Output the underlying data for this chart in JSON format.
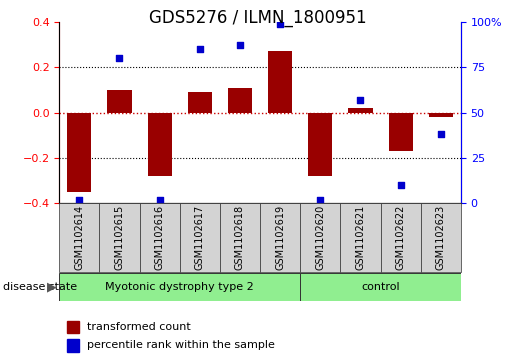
{
  "title": "GDS5276 / ILMN_1800951",
  "samples": [
    "GSM1102614",
    "GSM1102615",
    "GSM1102616",
    "GSM1102617",
    "GSM1102618",
    "GSM1102619",
    "GSM1102620",
    "GSM1102621",
    "GSM1102622",
    "GSM1102623"
  ],
  "bar_values": [
    -0.35,
    0.1,
    -0.28,
    0.09,
    0.11,
    0.27,
    -0.28,
    0.02,
    -0.17,
    -0.02
  ],
  "dot_values": [
    2,
    80,
    2,
    85,
    87,
    99,
    2,
    57,
    10,
    38
  ],
  "ylim": [
    -0.4,
    0.4
  ],
  "y2lim": [
    0,
    100
  ],
  "yticks": [
    -0.4,
    -0.2,
    0,
    0.2,
    0.4
  ],
  "y2ticks": [
    0,
    25,
    50,
    75,
    100
  ],
  "bar_color": "#990000",
  "dot_color": "#0000cc",
  "zero_line_color": "#cc0000",
  "disease_groups": [
    {
      "label": "Myotonic dystrophy type 2",
      "start": 0,
      "end": 5,
      "color": "#90ee90"
    },
    {
      "label": "control",
      "start": 6,
      "end": 9,
      "color": "#90ee90"
    }
  ],
  "disease_state_label": "disease state",
  "legend_items": [
    {
      "label": "transformed count",
      "color": "#990000"
    },
    {
      "label": "percentile rank within the sample",
      "color": "#0000cc"
    }
  ],
  "title_fontsize": 12,
  "tick_fontsize": 8,
  "label_fontsize": 8,
  "sample_fontsize": 7,
  "n_samples": 10,
  "n_disease": 6
}
